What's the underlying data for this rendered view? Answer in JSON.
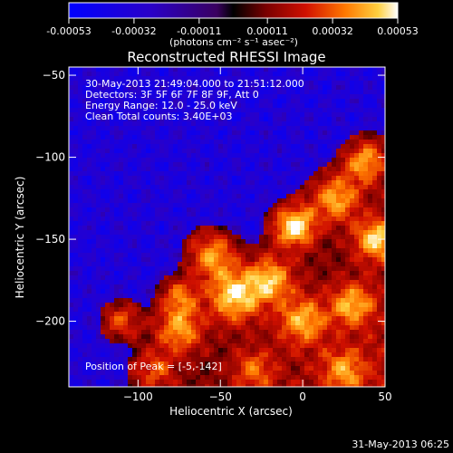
{
  "chart_data": {
    "type": "heatmap",
    "title": "Reconstructed RHESSI Image",
    "xlabel": "Heliocentric X (arcsec)",
    "ylabel": "Heliocentric Y (arcsec)",
    "xlim": [
      -142,
      50
    ],
    "ylim": [
      -240,
      -45
    ],
    "x_ticks": [
      -100,
      -50,
      0,
      50
    ],
    "y_ticks": [
      -50,
      -100,
      -150,
      -200
    ],
    "colorbar": {
      "range": [
        -0.00053,
        0.00053
      ],
      "tick_values": [
        -0.00053,
        -0.00032,
        -0.00011,
        0.00011,
        0.00032,
        0.00053
      ],
      "tick_labels": [
        "-0.00053",
        "-0.00032",
        "-0.00011",
        "0.00011",
        "0.00032",
        "0.00053"
      ],
      "units_label": "(photons cm⁻² s⁻¹ asec⁻²)"
    },
    "annotations": [
      "30-May-2013 21:49:04.000 to 21:51:12.000",
      "Detectors: 3F 5F 6F 7F 8F 9F, Att 0",
      "Energy Range: 12.0 - 25.0 keV",
      "Clean     Total counts: 3.40E+03"
    ],
    "peak_label": "Position of Peak = [-5,-142]",
    "peak": [
      -5,
      -142
    ],
    "sources": [
      {
        "x": -5,
        "y": -142,
        "sigma": 9,
        "amp": 1.0
      },
      {
        "x": 20,
        "y": -125,
        "sigma": 10,
        "amp": 0.75
      },
      {
        "x": 38,
        "y": -103,
        "sigma": 9,
        "amp": 0.75
      },
      {
        "x": 45,
        "y": -150,
        "sigma": 9,
        "amp": 0.85
      },
      {
        "x": -55,
        "y": -160,
        "sigma": 10,
        "amp": 0.75
      },
      {
        "x": -42,
        "y": -185,
        "sigma": 11,
        "amp": 0.9
      },
      {
        "x": -20,
        "y": -175,
        "sigma": 10,
        "amp": 0.8
      },
      {
        "x": 0,
        "y": -200,
        "sigma": 10,
        "amp": 0.7
      },
      {
        "x": 30,
        "y": -190,
        "sigma": 9,
        "amp": 0.7
      },
      {
        "x": -75,
        "y": -205,
        "sigma": 10,
        "amp": 0.75
      },
      {
        "x": -110,
        "y": -200,
        "sigma": 8,
        "amp": 0.55
      },
      {
        "x": -90,
        "y": -230,
        "sigma": 9,
        "amp": 0.5
      },
      {
        "x": -30,
        "y": -230,
        "sigma": 9,
        "amp": 0.5
      },
      {
        "x": 25,
        "y": -230,
        "sigma": 9,
        "amp": 0.55
      },
      {
        "x": -75,
        "y": -185,
        "sigma": 8,
        "amp": 0.6
      }
    ]
  },
  "footer": {
    "timestamp": "31-May-2013 06:25"
  }
}
